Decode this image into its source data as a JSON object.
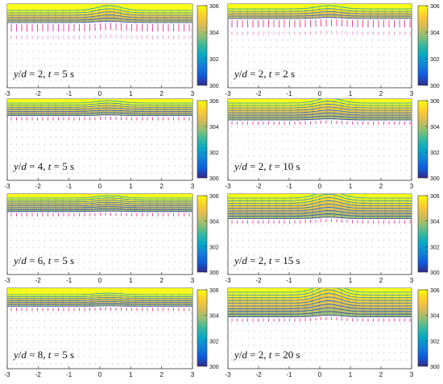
{
  "figure": {
    "colorbar": {
      "ticks": [
        "306",
        "304",
        "302",
        "300"
      ],
      "range": [
        300,
        306
      ],
      "colormap": "parula",
      "stops": [
        "#352a87",
        "#0f5cdd",
        "#1481d6",
        "#06a7c6",
        "#38b99e",
        "#92bf73",
        "#d9ba56",
        "#fcce2e",
        "#f9fb0e"
      ]
    },
    "x_ticks": [
      "-3",
      "-2",
      "-1",
      "0",
      "1",
      "2",
      "3"
    ],
    "vector_colors": [
      "#e8188a",
      "#c8c8c8"
    ]
  },
  "chart_data": [
    {
      "type": "heatmap",
      "panel": "left-1",
      "label": {
        "a": "y",
        "b": "/",
        "c": "d",
        "d": " = 2, ",
        "e": "t",
        "f": " = 5 s"
      },
      "xlim": [
        -3,
        3
      ],
      "clim": [
        300,
        306
      ],
      "x_ticks": [
        "-3",
        "-2",
        "-1",
        "0",
        "1",
        "2",
        "3"
      ],
      "colorbar_ticks": [
        "306",
        "304",
        "302",
        "300"
      ]
    },
    {
      "type": "heatmap",
      "panel": "right-1",
      "label": {
        "a": "y",
        "b": "/",
        "c": "d",
        "d": " = 2, ",
        "e": "t",
        "f": " = 2 s"
      },
      "xlim": [
        -3,
        3
      ],
      "clim": [
        300,
        306
      ],
      "x_ticks": [
        "-3",
        "-2",
        "-1",
        "0",
        "1",
        "2",
        "3"
      ],
      "colorbar_ticks": [
        "306",
        "304",
        "302",
        "300"
      ]
    },
    {
      "type": "heatmap",
      "panel": "left-2",
      "label": {
        "a": "y",
        "b": "/",
        "c": "d",
        "d": " = 4, ",
        "e": "t",
        "f": " = 5 s"
      },
      "xlim": [
        -3,
        3
      ],
      "clim": [
        300,
        306
      ],
      "x_ticks": [
        "-3",
        "-2",
        "-1",
        "0",
        "1",
        "2",
        "3"
      ],
      "colorbar_ticks": [
        "306",
        "304",
        "302",
        "300"
      ]
    },
    {
      "type": "heatmap",
      "panel": "right-2",
      "label": {
        "a": "y",
        "b": "/",
        "c": "d",
        "d": " = 2, ",
        "e": "t",
        "f": " = 10 s"
      },
      "xlim": [
        -3,
        3
      ],
      "clim": [
        300,
        306
      ],
      "x_ticks": [
        "-3",
        "-2",
        "-1",
        "0",
        "1",
        "2",
        "3"
      ],
      "colorbar_ticks": [
        "306",
        "304",
        "302",
        "300"
      ]
    },
    {
      "type": "heatmap",
      "panel": "left-3",
      "label": {
        "a": "y",
        "b": "/",
        "c": "d",
        "d": " = 6, ",
        "e": "t",
        "f": " = 5 s"
      },
      "xlim": [
        -3,
        3
      ],
      "clim": [
        300,
        306
      ],
      "x_ticks": [
        "-3",
        "-2",
        "-1",
        "0",
        "1",
        "2",
        "3"
      ],
      "colorbar_ticks": [
        "306",
        "304",
        "302",
        "300"
      ]
    },
    {
      "type": "heatmap",
      "panel": "right-3",
      "label": {
        "a": "y",
        "b": "/",
        "c": "d",
        "d": " = 2, ",
        "e": "t",
        "f": " = 15 s"
      },
      "xlim": [
        -3,
        3
      ],
      "clim": [
        300,
        306
      ],
      "x_ticks": [
        "-3",
        "-2",
        "-1",
        "0",
        "1",
        "2",
        "3"
      ],
      "colorbar_ticks": [
        "306",
        "304",
        "302",
        "300"
      ]
    },
    {
      "type": "heatmap",
      "panel": "left-4",
      "label": {
        "a": "y",
        "b": "/",
        "c": "d",
        "d": " = 8, ",
        "e": "t",
        "f": " = 5 s"
      },
      "xlim": [
        -3,
        3
      ],
      "clim": [
        300,
        306
      ],
      "x_ticks": [
        "-3",
        "-2",
        "-1",
        "0",
        "1",
        "2",
        "3"
      ],
      "colorbar_ticks": [
        "306",
        "304",
        "302",
        "300"
      ]
    },
    {
      "type": "heatmap",
      "panel": "right-4",
      "label": {
        "a": "y",
        "b": "/",
        "c": "d",
        "d": " = 2, ",
        "e": "t",
        "f": " = 20 s"
      },
      "xlim": [
        -3,
        3
      ],
      "clim": [
        300,
        306
      ],
      "x_ticks": [
        "-3",
        "-2",
        "-1",
        "0",
        "1",
        "2",
        "3"
      ],
      "colorbar_ticks": [
        "306",
        "304",
        "302",
        "300"
      ]
    }
  ]
}
